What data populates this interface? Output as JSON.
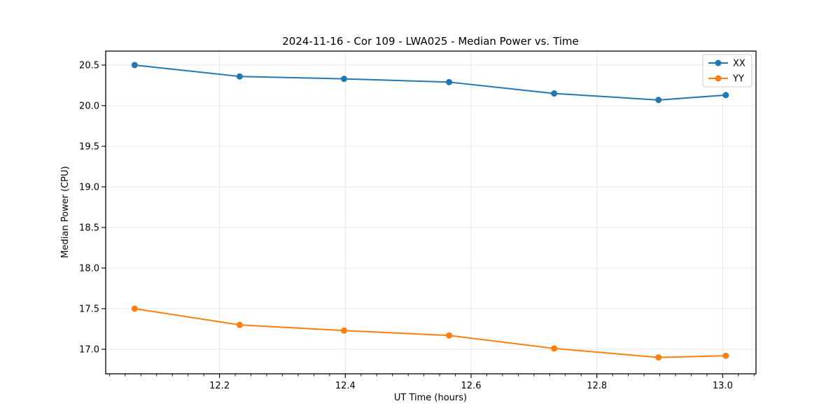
{
  "chart_data": {
    "type": "line",
    "title": "2024-11-16 - Cor 109 - LWA025 - Median Power vs. Time",
    "xlabel": "UT Time (hours)",
    "ylabel": "Median Power (CPU)",
    "xlim": [
      12.019,
      13.053
    ],
    "ylim": [
      16.698,
      20.672
    ],
    "xticks": [
      12.2,
      12.4,
      12.6,
      12.8,
      13.0
    ],
    "yticks": [
      17.0,
      17.5,
      18.0,
      18.5,
      19.0,
      19.5,
      20.0,
      20.5
    ],
    "x_minor_step": 0.025,
    "grid": true,
    "legend_position": "upper right",
    "x": [
      12.065,
      12.232,
      12.398,
      12.565,
      12.732,
      12.898,
      13.005
    ],
    "series": [
      {
        "name": "XX",
        "color": "#1f77b4",
        "values": [
          20.5,
          20.36,
          20.33,
          20.29,
          20.15,
          20.07,
          20.13
        ]
      },
      {
        "name": "YY",
        "color": "#ff7f0e",
        "values": [
          17.5,
          17.3,
          17.23,
          17.17,
          17.01,
          16.9,
          16.92
        ]
      }
    ]
  }
}
